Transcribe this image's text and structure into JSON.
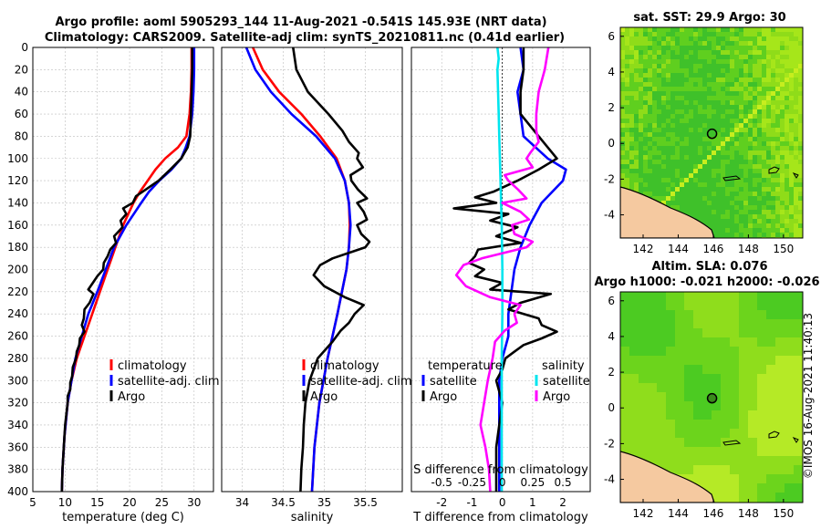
{
  "title_line1": "Argo profile: aoml 5905293_144 11-Aug-2021 -0.541S 145.93E (NRT data)",
  "title_line2": "Climatology: CARS2009. Satellite-adj clim: synTS_20210811.nc (0.41d earlier)",
  "watermark": "©IMOS 16-Aug-2021 11:40:13",
  "colors": {
    "clim": "#ff0000",
    "sat": "#0000ff",
    "argo": "#000000",
    "sat_diff": "#00e5ee",
    "argo_diff": "#ff00ff",
    "land": "#f5c9a0",
    "grid": "#bdbdbd"
  },
  "chart_data": [
    {
      "type": "line",
      "name": "temperature-panel",
      "xlabel": "temperature (deg C)",
      "ylabel": "",
      "xlim": [
        5,
        33
      ],
      "ylim": [
        400,
        0
      ],
      "xticks": [
        5,
        10,
        15,
        20,
        25,
        30
      ],
      "yticks": [
        0,
        20,
        40,
        60,
        80,
        100,
        120,
        140,
        160,
        180,
        200,
        220,
        240,
        260,
        280,
        300,
        320,
        340,
        360,
        380,
        400
      ],
      "legend": [
        "climatology",
        "satellite-adj. clim",
        "Argo"
      ],
      "series": [
        {
          "name": "climatology",
          "depth": [
            0,
            20,
            40,
            60,
            80,
            90,
            100,
            110,
            120,
            130,
            140,
            160,
            180,
            200,
            220,
            240,
            260,
            280,
            300,
            320,
            350,
            380,
            400
          ],
          "values": [
            29.6,
            29.6,
            29.5,
            29.3,
            28.8,
            27.5,
            25.5,
            24.0,
            22.8,
            21.6,
            20.6,
            19.0,
            17.8,
            16.6,
            15.4,
            14.2,
            13.0,
            11.8,
            11.0,
            10.4,
            9.9,
            9.6,
            9.5
          ]
        },
        {
          "name": "satellite-adj. clim",
          "depth": [
            0,
            20,
            40,
            60,
            80,
            90,
            100,
            110,
            120,
            130,
            140,
            160,
            180,
            200,
            220,
            240,
            260,
            280,
            300,
            320,
            350,
            380,
            400
          ],
          "values": [
            30.0,
            30.0,
            29.9,
            29.7,
            29.3,
            28.7,
            28.0,
            26.5,
            24.6,
            23.0,
            21.8,
            19.5,
            17.6,
            16.3,
            15.0,
            13.6,
            12.6,
            11.6,
            11.0,
            10.4,
            9.9,
            9.6,
            9.5
          ]
        },
        {
          "name": "Argo",
          "depth": [
            0,
            20,
            40,
            60,
            80,
            90,
            100,
            110,
            120,
            128,
            134,
            140,
            145,
            150,
            156,
            162,
            170,
            176,
            182,
            188,
            194,
            200,
            206,
            212,
            218,
            222,
            230,
            236,
            244,
            250,
            256,
            262,
            268,
            274,
            280,
            288,
            296,
            302,
            308,
            314,
            320,
            340,
            360,
            380,
            400
          ],
          "values": [
            29.7,
            29.7,
            29.6,
            29.5,
            29.4,
            29.0,
            28.0,
            26.3,
            24.5,
            22.5,
            21.0,
            20.5,
            19.0,
            19.5,
            18.6,
            18.9,
            17.6,
            17.9,
            17.0,
            16.6,
            16.0,
            15.9,
            15.0,
            14.3,
            13.6,
            14.4,
            13.8,
            13.0,
            12.9,
            12.6,
            13.0,
            12.3,
            12.2,
            11.8,
            11.7,
            11.2,
            11.1,
            10.8,
            10.8,
            10.4,
            10.4,
            10.0,
            9.8,
            9.6,
            9.5
          ]
        }
      ]
    },
    {
      "type": "line",
      "name": "salinity-panel",
      "xlabel": "salinity",
      "ylabel": "",
      "xlim": [
        33.75,
        35.95
      ],
      "ylim": [
        400,
        0
      ],
      "xticks": [
        34,
        34.5,
        35,
        35.5
      ],
      "legend": [
        "climatology",
        "satellite-adj. clim",
        "Argo"
      ],
      "series": [
        {
          "name": "climatology",
          "depth": [
            0,
            20,
            40,
            60,
            80,
            100,
            120,
            140,
            160,
            180,
            200,
            240,
            280,
            320,
            360,
            400
          ],
          "values": [
            34.13,
            34.25,
            34.45,
            34.72,
            34.95,
            35.15,
            35.25,
            35.3,
            35.31,
            35.3,
            35.27,
            35.16,
            35.04,
            34.94,
            34.88,
            34.85
          ]
        },
        {
          "name": "satellite-adj. clim",
          "depth": [
            0,
            20,
            40,
            60,
            80,
            100,
            120,
            140,
            160,
            180,
            200,
            240,
            280,
            320,
            360,
            400
          ],
          "values": [
            34.05,
            34.16,
            34.35,
            34.6,
            34.9,
            35.13,
            35.25,
            35.3,
            35.32,
            35.3,
            35.27,
            35.16,
            35.04,
            34.94,
            34.88,
            34.85
          ]
        },
        {
          "name": "Argo",
          "depth": [
            0,
            20,
            40,
            60,
            75,
            85,
            95,
            100,
            108,
            115,
            120,
            128,
            136,
            140,
            148,
            155,
            160,
            168,
            175,
            180,
            190,
            196,
            205,
            215,
            225,
            232,
            240,
            248,
            255,
            265,
            280,
            300,
            320,
            340,
            360,
            380,
            400
          ],
          "values": [
            34.62,
            34.66,
            34.8,
            35.05,
            35.22,
            35.3,
            35.42,
            35.4,
            35.47,
            35.32,
            35.33,
            35.41,
            35.52,
            35.4,
            35.48,
            35.52,
            35.4,
            35.45,
            35.55,
            35.5,
            35.1,
            34.95,
            34.87,
            35.0,
            35.25,
            35.48,
            35.37,
            35.3,
            35.2,
            35.1,
            34.92,
            34.82,
            34.77,
            34.75,
            34.74,
            34.72,
            34.71
          ]
        }
      ]
    },
    {
      "type": "line",
      "name": "difference-panel",
      "xlabel": "T difference from climatology",
      "xlabel_top": "S difference from climatology",
      "xlim": [
        -3,
        2.9
      ],
      "ylim": [
        400,
        0
      ],
      "xticks": [
        -2,
        -1,
        0,
        1,
        2
      ],
      "xticks_s": [
        "-0.5",
        "-0.25",
        "0",
        "0.25",
        "0.5"
      ],
      "legend_t_title": "temperature",
      "legend_s_title": "salinity",
      "legend": [
        "satellite",
        "Argo",
        "satellite",
        "Argo"
      ],
      "series": [
        {
          "name": "satellite T diff",
          "depth": [
            0,
            20,
            40,
            60,
            80,
            100,
            110,
            120,
            140,
            160,
            180,
            200,
            240,
            260,
            280,
            300,
            320,
            360,
            400
          ],
          "values": [
            0.6,
            0.7,
            0.5,
            0.6,
            0.7,
            1.5,
            2.1,
            2.0,
            1.3,
            0.9,
            0.6,
            0.4,
            0.2,
            0.2,
            0.0,
            -0.1,
            -0.1,
            -0.1,
            -0.1
          ]
        },
        {
          "name": "Argo T diff",
          "depth": [
            0,
            20,
            40,
            60,
            80,
            100,
            110,
            120,
            130,
            135,
            140,
            145,
            150,
            156,
            162,
            170,
            176,
            182,
            188,
            194,
            200,
            206,
            212,
            218,
            222,
            230,
            236,
            244,
            250,
            256,
            262,
            268,
            274,
            280,
            290,
            300,
            320,
            340,
            360,
            380,
            400
          ],
          "values": [
            0.7,
            0.7,
            0.6,
            0.6,
            1.2,
            1.8,
            1.2,
            0.5,
            -0.3,
            -0.9,
            -0.2,
            -1.6,
            0.2,
            -0.4,
            0.5,
            -0.2,
            0.6,
            -0.8,
            -0.9,
            -1.1,
            -0.6,
            -0.9,
            0.0,
            -0.4,
            1.6,
            0.6,
            0.2,
            1.2,
            1.3,
            1.8,
            1.3,
            0.7,
            0.4,
            0.1,
            0.0,
            -0.2,
            0.0,
            -0.1,
            -0.2,
            -0.2,
            -0.2
          ]
        },
        {
          "name": "satellite S diff",
          "depth": [
            0,
            10,
            20,
            40,
            60,
            80,
            100,
            140,
            160,
            200,
            240,
            280,
            320,
            360,
            400
          ],
          "values": [
            -0.04,
            -0.03,
            -0.04,
            -0.035,
            -0.03,
            -0.025,
            -0.02,
            -0.01,
            -0.005,
            0,
            0,
            -0.005,
            -0.005,
            -0.005,
            -0.005
          ]
        },
        {
          "name": "Argo S diff",
          "depth": [
            0,
            20,
            40,
            60,
            75,
            85,
            95,
            100,
            108,
            115,
            120,
            128,
            136,
            140,
            148,
            155,
            160,
            168,
            175,
            180,
            190,
            196,
            205,
            215,
            225,
            232,
            240,
            248,
            255,
            265,
            280,
            300,
            320,
            340,
            360,
            380,
            400
          ],
          "values": [
            0.38,
            0.35,
            0.3,
            0.28,
            0.28,
            0.3,
            0.23,
            0.2,
            0.25,
            0.02,
            0.05,
            0.13,
            0.2,
            0.0,
            0.15,
            0.22,
            0.08,
            0.1,
            0.25,
            0.2,
            -0.17,
            -0.32,
            -0.38,
            -0.3,
            -0.1,
            0.15,
            0.1,
            0.12,
            0.02,
            -0.06,
            -0.08,
            -0.12,
            -0.15,
            -0.18,
            -0.14,
            -0.11,
            -0.1
          ]
        }
      ]
    },
    {
      "type": "heatmap",
      "name": "sst-map",
      "title": "sat. SST: 29.9 Argo: 30",
      "xticks": [
        142,
        144,
        146,
        148,
        150
      ],
      "yticks": [
        6,
        4,
        2,
        0,
        -2,
        -4
      ],
      "xlim": [
        140.7,
        151.1
      ],
      "ylim": [
        -5.3,
        6.5
      ],
      "argo_position": [
        145.93,
        -0.541
      ]
    },
    {
      "type": "heatmap",
      "name": "sla-map",
      "title_line1": "Altim. SLA: 0.076",
      "title_line2": "Argo h1000: -0.021 h2000: -0.026",
      "xticks": [
        142,
        144,
        146,
        148,
        150
      ],
      "yticks": [
        6,
        4,
        2,
        0,
        -2,
        -4
      ],
      "xlim": [
        140.7,
        151.1
      ],
      "ylim": [
        -5.3,
        6.5
      ],
      "argo_position": [
        145.93,
        -0.541
      ]
    }
  ]
}
